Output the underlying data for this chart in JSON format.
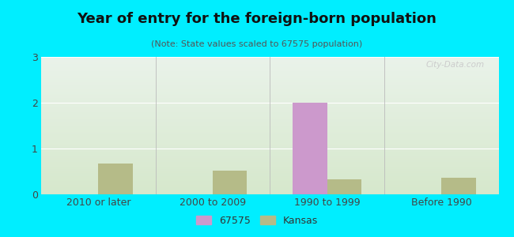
{
  "title": "Year of entry for the foreign-born population",
  "subtitle": "(Note: State values scaled to 67575 population)",
  "categories": [
    "2010 or later",
    "2000 to 2009",
    "1990 to 1999",
    "Before 1990"
  ],
  "series_67575": [
    0,
    0,
    2.0,
    0
  ],
  "series_kansas": [
    0.67,
    0.52,
    0.32,
    0.36
  ],
  "color_67575": "#cc99cc",
  "color_kansas": "#b5bb88",
  "background_outer": "#00eeff",
  "background_inner_top": "#eaf3ea",
  "background_inner_bottom": "#d6e8cc",
  "ylim": [
    0,
    3
  ],
  "yticks": [
    0,
    1,
    2,
    3
  ],
  "bar_width": 0.3,
  "legend_label_67575": "67575",
  "legend_label_kansas": "Kansas",
  "watermark": "City-Data.com",
  "title_fontsize": 13,
  "subtitle_fontsize": 8,
  "tick_fontsize": 9,
  "legend_fontsize": 9
}
